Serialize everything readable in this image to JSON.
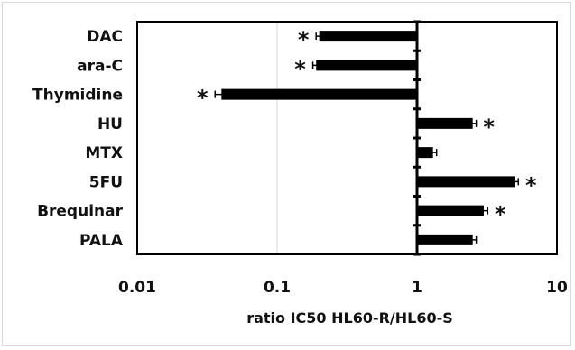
{
  "chart_data": {
    "type": "bar",
    "orientation": "horizontal",
    "xscale": "log",
    "xlim": [
      0.01,
      10
    ],
    "baseline": 1,
    "categories": [
      "DAC",
      "ara-C",
      "Thymidine",
      "HU",
      "MTX",
      "5FU",
      "Brequinar",
      "PALA"
    ],
    "values": [
      0.2,
      0.19,
      0.04,
      2.5,
      1.3,
      5.0,
      3.0,
      2.5
    ],
    "errors": [
      0.01,
      0.01,
      0.004,
      0.15,
      0.08,
      0.3,
      0.2,
      0.15
    ],
    "significant": [
      true,
      true,
      true,
      true,
      false,
      true,
      true,
      false
    ],
    "significance_mark": "*",
    "xticks": [
      "0.01",
      "0.1",
      "1",
      "10"
    ],
    "xlabel": "ratio IC50  HL60-R/HL60-S",
    "colors": {
      "bar": "#000000",
      "grid": "#d9d9d9"
    }
  }
}
